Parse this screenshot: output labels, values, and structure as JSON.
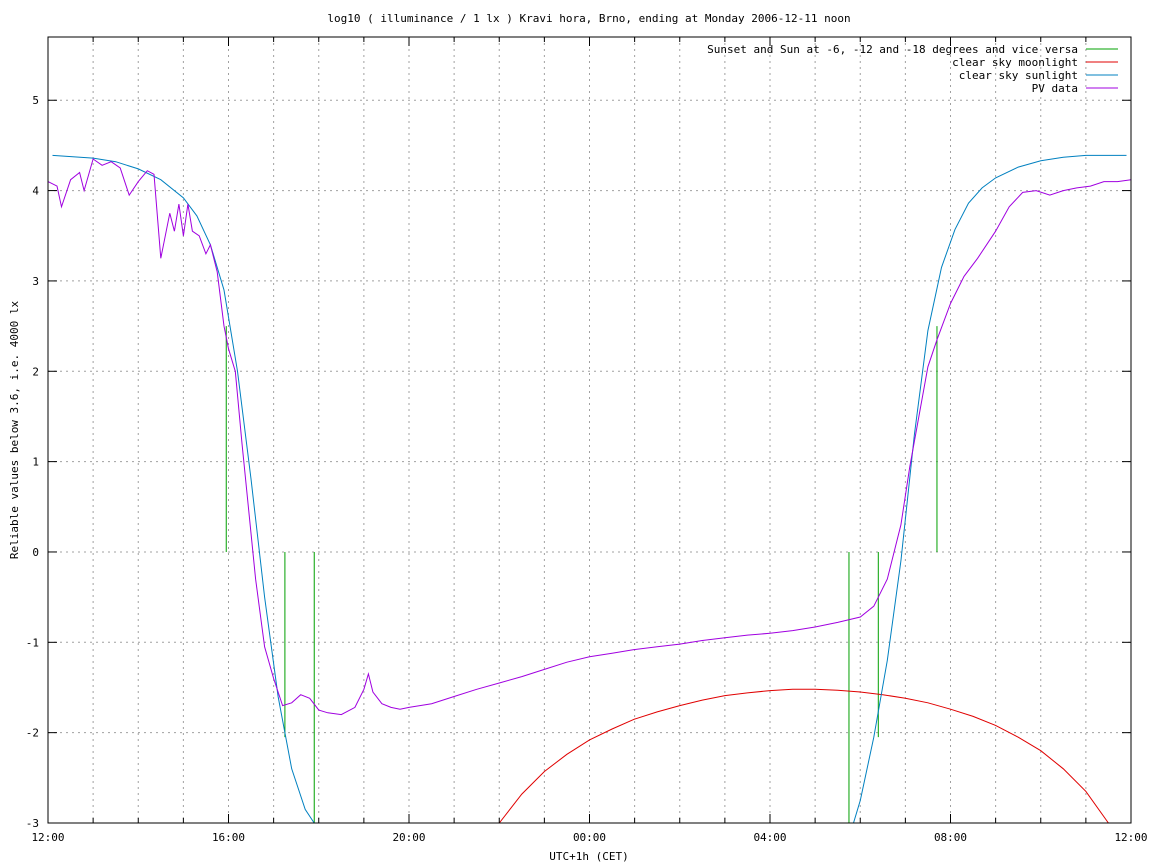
{
  "chart_data": {
    "type": "line",
    "title": "log10 ( illuminance / 1 lx ) Kravi hora, Brno, ending at Monday 2006-12-11 noon",
    "xlabel": "UTC+1h (CET)",
    "ylabel": "Reliable values below 3.6, i.e. 4000 lx",
    "xlim": [
      12,
      36
    ],
    "ylim": [
      -3,
      5.7
    ],
    "x_ticks": [
      {
        "value": 12,
        "label": "12:00"
      },
      {
        "value": 16,
        "label": "16:00"
      },
      {
        "value": 20,
        "label": "20:00"
      },
      {
        "value": 24,
        "label": "00:00"
      },
      {
        "value": 28,
        "label": "04:00"
      },
      {
        "value": 32,
        "label": "08:00"
      },
      {
        "value": 36,
        "label": "12:00"
      }
    ],
    "x_minor_step": 1,
    "y_ticks": [
      -3,
      -2,
      -1,
      0,
      1,
      2,
      3,
      4,
      5
    ],
    "grid": true,
    "legend_position": "top-right",
    "series": [
      {
        "name": "Sunset and Sun at -6, -12 and -18 degrees and vice versa",
        "color": "#00a000",
        "kind": "vlines",
        "lines": [
          {
            "x": 15.95,
            "y0": 0,
            "y1": 2.5
          },
          {
            "x": 16.6,
            "y0": 0,
            "y1": 0.0
          },
          {
            "x": 17.25,
            "y0": -2.05,
            "y1": 0
          },
          {
            "x": 17.9,
            "y0": -3,
            "y1": 0
          },
          {
            "x": 29.75,
            "y0": -3,
            "y1": 0
          },
          {
            "x": 30.4,
            "y0": -2.05,
            "y1": 0
          },
          {
            "x": 31.05,
            "y0": 0,
            "y1": 0.0
          },
          {
            "x": 31.7,
            "y0": 0,
            "y1": 2.5
          }
        ]
      },
      {
        "name": "clear sky moonlight",
        "color": "#e00000",
        "x": [
          22.0,
          22.5,
          23.0,
          23.5,
          24.0,
          24.5,
          25.0,
          25.5,
          26.0,
          26.5,
          27.0,
          27.5,
          28.0,
          28.5,
          29.0,
          29.5,
          30.0,
          30.5,
          31.0,
          31.5,
          32.0,
          32.5,
          33.0,
          33.5,
          34.0,
          34.5,
          35.0,
          35.5
        ],
        "values": [
          -3.0,
          -2.68,
          -2.43,
          -2.24,
          -2.08,
          -1.96,
          -1.85,
          -1.77,
          -1.7,
          -1.64,
          -1.59,
          -1.56,
          -1.535,
          -1.52,
          -1.52,
          -1.53,
          -1.55,
          -1.58,
          -1.62,
          -1.67,
          -1.74,
          -1.82,
          -1.92,
          -2.05,
          -2.2,
          -2.4,
          -2.65,
          -3.0
        ]
      },
      {
        "name": "clear sky sunlight",
        "color": "#0080c0",
        "x": [
          12.1,
          13.0,
          13.5,
          14.0,
          14.5,
          15.0,
          15.3,
          15.6,
          15.9,
          16.2,
          16.5,
          16.8,
          17.1,
          17.4,
          17.7,
          17.9,
          29.85,
          30.0,
          30.3,
          30.6,
          30.9,
          31.2,
          31.5,
          31.8,
          32.1,
          32.4,
          32.7,
          33.0,
          33.5,
          34.0,
          34.5,
          35.0,
          35.9
        ],
        "values": [
          4.39,
          4.36,
          4.32,
          4.24,
          4.12,
          3.92,
          3.72,
          3.4,
          2.9,
          2.0,
          0.8,
          -0.5,
          -1.6,
          -2.4,
          -2.85,
          -3.0,
          -3.0,
          -2.75,
          -2.05,
          -1.2,
          -0.1,
          1.3,
          2.45,
          3.15,
          3.57,
          3.86,
          4.03,
          4.14,
          4.26,
          4.33,
          4.37,
          4.39,
          4.39
        ]
      },
      {
        "name": "PV data",
        "color": "#a000e0",
        "x": [
          12.0,
          12.2,
          12.3,
          12.5,
          12.7,
          12.8,
          13.0,
          13.2,
          13.4,
          13.6,
          13.8,
          14.0,
          14.2,
          14.35,
          14.5,
          14.7,
          14.8,
          14.9,
          15.0,
          15.1,
          15.2,
          15.35,
          15.5,
          15.6,
          15.75,
          15.9,
          16.0,
          16.15,
          16.3,
          16.45,
          16.6,
          16.8,
          17.0,
          17.2,
          17.4,
          17.6,
          17.8,
          18.0,
          18.2,
          18.5,
          18.8,
          19.0,
          19.1,
          19.2,
          19.4,
          19.6,
          19.8,
          20.0,
          20.5,
          21.0,
          21.5,
          22.0,
          22.5,
          23.0,
          23.5,
          24.0,
          24.5,
          25.0,
          25.5,
          26.0,
          26.5,
          27.0,
          27.5,
          28.0,
          28.5,
          29.0,
          29.5,
          30.0,
          30.3,
          30.6,
          30.9,
          31.1,
          31.3,
          31.5,
          31.7,
          32.0,
          32.3,
          32.6,
          33.0,
          33.3,
          33.6,
          33.9,
          34.2,
          34.5,
          34.8,
          35.1,
          35.4,
          35.7,
          36.0
        ],
        "values": [
          4.1,
          4.05,
          3.82,
          4.12,
          4.2,
          4.0,
          4.35,
          4.28,
          4.32,
          4.25,
          3.95,
          4.1,
          4.22,
          4.18,
          3.25,
          3.75,
          3.55,
          3.85,
          3.5,
          3.85,
          3.55,
          3.5,
          3.3,
          3.4,
          3.1,
          2.5,
          2.25,
          2.0,
          1.2,
          0.45,
          -0.3,
          -1.05,
          -1.4,
          -1.7,
          -1.67,
          -1.58,
          -1.62,
          -1.75,
          -1.78,
          -1.8,
          -1.72,
          -1.52,
          -1.35,
          -1.55,
          -1.68,
          -1.72,
          -1.74,
          -1.72,
          -1.68,
          -1.6,
          -1.52,
          -1.45,
          -1.38,
          -1.3,
          -1.22,
          -1.16,
          -1.12,
          -1.08,
          -1.05,
          -1.02,
          -0.98,
          -0.95,
          -0.92,
          -0.9,
          -0.87,
          -0.83,
          -0.78,
          -0.72,
          -0.6,
          -0.3,
          0.3,
          0.95,
          1.5,
          2.05,
          2.35,
          2.75,
          3.05,
          3.25,
          3.55,
          3.82,
          3.98,
          4.0,
          3.95,
          4.0,
          4.03,
          4.05,
          4.1,
          4.1,
          4.12
        ]
      }
    ]
  }
}
